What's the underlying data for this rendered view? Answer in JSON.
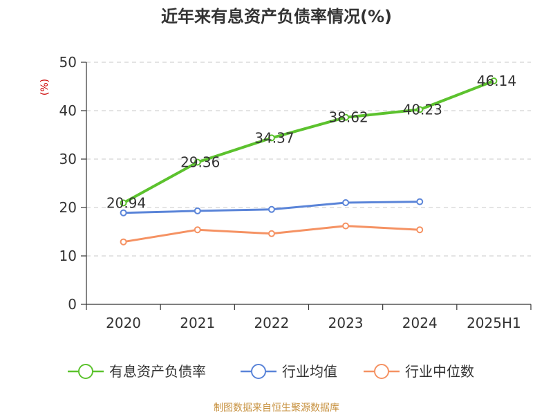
{
  "chart_data": {
    "type": "line",
    "title": "近年来有息资产负债率情况(%)",
    "ylabel": "(%)",
    "xlabel": "",
    "categories": [
      "2020",
      "2021",
      "2022",
      "2023",
      "2024",
      "2025H1"
    ],
    "ylim": [
      0,
      50
    ],
    "yticks": [
      0,
      10,
      20,
      30,
      40,
      50
    ],
    "grid": true,
    "legend_position": "bottom",
    "series": [
      {
        "name": "有息资产负债率",
        "values": [
          20.94,
          29.36,
          34.37,
          38.62,
          40.23,
          46.14
        ],
        "color": "#5cc22e",
        "labels": [
          "20.94",
          "29.36",
          "34.37",
          "38.62",
          "40.23",
          "46.14"
        ]
      },
      {
        "name": "行业均值",
        "values": [
          18.9,
          19.3,
          19.6,
          21.0,
          21.2,
          null
        ],
        "color": "#5a84d8"
      },
      {
        "name": "行业中位数",
        "values": [
          12.9,
          15.4,
          14.6,
          16.2,
          15.4,
          null
        ],
        "color": "#f59263"
      }
    ],
    "source": "制图数据来自恒生聚源数据库"
  }
}
